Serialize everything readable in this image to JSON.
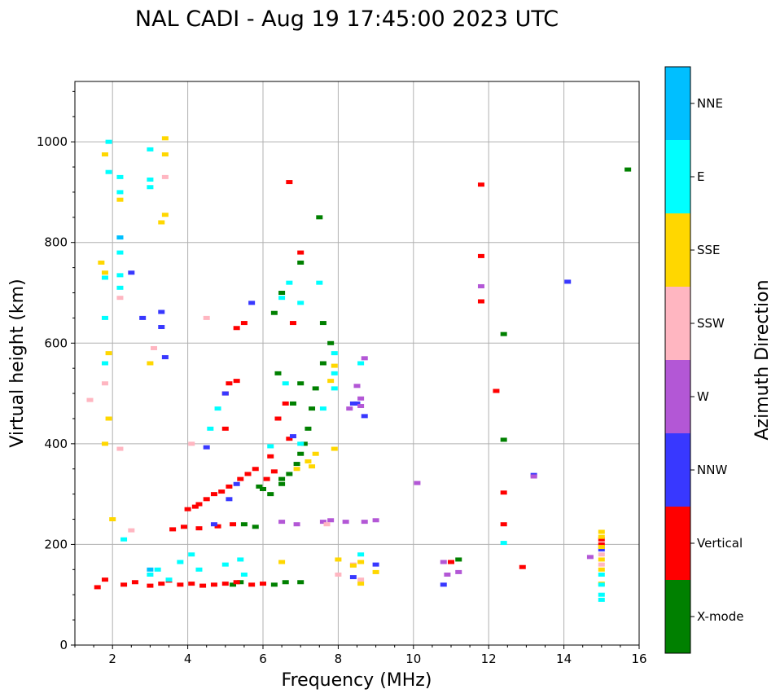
{
  "chart_data": {
    "type": "scatter",
    "title": "NAL CADI - Aug 19 17:45:00 2023 UTC",
    "xlabel": "Frequency (MHz)",
    "ylabel": "Virtual height (km)",
    "xlim": [
      1,
      16
    ],
    "ylim": [
      0,
      1120
    ],
    "xticks": [
      2,
      4,
      6,
      8,
      10,
      12,
      14,
      16
    ],
    "xtick_labels": [
      "2",
      "4",
      "6",
      "8",
      "10",
      "12",
      "14",
      "16"
    ],
    "yticks": [
      0,
      200,
      400,
      600,
      800,
      1000
    ],
    "ytick_labels": [
      "0",
      "200",
      "400",
      "600",
      "800",
      "1000"
    ],
    "grid": true,
    "colorbar": {
      "label": "Azimuth Direction",
      "categories": [
        {
          "name": "X-mode",
          "color": "#008000"
        },
        {
          "name": "Vertical",
          "color": "#ff0000"
        },
        {
          "name": "NNW",
          "color": "#3838ff"
        },
        {
          "name": "W",
          "color": "#b357d6"
        },
        {
          "name": "SSW",
          "color": "#ffb6c1"
        },
        {
          "name": "SSE",
          "color": "#ffd700"
        },
        {
          "name": "E",
          "color": "#00ffff"
        },
        {
          "name": "NNE",
          "color": "#00bfff"
        }
      ]
    },
    "series": [
      {
        "name": "X-mode",
        "points": [
          [
            6.5,
            320
          ],
          [
            6.7,
            340
          ],
          [
            6.9,
            360
          ],
          [
            7.0,
            380
          ],
          [
            7.1,
            400
          ],
          [
            7.2,
            430
          ],
          [
            7.3,
            470
          ],
          [
            7.4,
            510
          ],
          [
            7.6,
            560
          ],
          [
            7.8,
            600
          ],
          [
            6.4,
            540
          ],
          [
            6.8,
            480
          ],
          [
            7.0,
            520
          ],
          [
            6.2,
            300
          ],
          [
            6.5,
            330
          ],
          [
            6.0,
            310
          ],
          [
            5.9,
            315
          ],
          [
            5.5,
            240
          ],
          [
            5.8,
            235
          ],
          [
            6.3,
            120
          ],
          [
            6.6,
            125
          ],
          [
            7.0,
            125
          ],
          [
            5.2,
            120
          ],
          [
            5.4,
            125
          ],
          [
            12.4,
            618
          ],
          [
            12.4,
            408
          ],
          [
            7.5,
            850
          ],
          [
            7.0,
            760
          ],
          [
            6.5,
            700
          ],
          [
            6.3,
            660
          ],
          [
            15.7,
            945
          ],
          [
            7.6,
            640
          ],
          [
            11.2,
            170
          ]
        ]
      },
      {
        "name": "Vertical",
        "points": [
          [
            1.6,
            115
          ],
          [
            1.8,
            130
          ],
          [
            2.3,
            120
          ],
          [
            2.6,
            125
          ],
          [
            3.0,
            118
          ],
          [
            3.3,
            122
          ],
          [
            3.5,
            128
          ],
          [
            3.8,
            120
          ],
          [
            4.1,
            122
          ],
          [
            4.4,
            118
          ],
          [
            4.7,
            120
          ],
          [
            5.0,
            122
          ],
          [
            5.3,
            125
          ],
          [
            5.7,
            120
          ],
          [
            6.0,
            122
          ],
          [
            3.6,
            230
          ],
          [
            3.9,
            235
          ],
          [
            4.3,
            232
          ],
          [
            4.8,
            236
          ],
          [
            5.2,
            240
          ],
          [
            4.0,
            270
          ],
          [
            4.2,
            275
          ],
          [
            4.3,
            280
          ],
          [
            4.5,
            290
          ],
          [
            4.7,
            300
          ],
          [
            4.9,
            305
          ],
          [
            5.1,
            315
          ],
          [
            5.4,
            330
          ],
          [
            5.6,
            340
          ],
          [
            5.8,
            350
          ],
          [
            6.1,
            330
          ],
          [
            6.3,
            345
          ],
          [
            5.0,
            430
          ],
          [
            5.1,
            520
          ],
          [
            5.3,
            525
          ],
          [
            5.0,
            500
          ],
          [
            5.5,
            640
          ],
          [
            5.3,
            630
          ],
          [
            6.4,
            450
          ],
          [
            6.6,
            480
          ],
          [
            6.7,
            410
          ],
          [
            6.7,
            920
          ],
          [
            7.0,
            780
          ],
          [
            6.8,
            640
          ],
          [
            6.2,
            375
          ],
          [
            12.9,
            155
          ],
          [
            12.4,
            303
          ],
          [
            12.4,
            240
          ],
          [
            11.8,
            915
          ],
          [
            11.8,
            773
          ],
          [
            11.8,
            683
          ],
          [
            12.2,
            505
          ],
          [
            11.0,
            165
          ],
          [
            15.0,
            200
          ],
          [
            15.0,
            210
          ]
        ]
      },
      {
        "name": "NNW",
        "points": [
          [
            5.7,
            680
          ],
          [
            3.3,
            632
          ],
          [
            3.3,
            662
          ],
          [
            3.4,
            572
          ],
          [
            2.5,
            740
          ],
          [
            2.8,
            650
          ],
          [
            6.8,
            415
          ],
          [
            5.1,
            290
          ],
          [
            5.3,
            320
          ],
          [
            4.7,
            240
          ],
          [
            8.5,
            480
          ],
          [
            8.7,
            455
          ],
          [
            9.0,
            160
          ],
          [
            8.4,
            135
          ],
          [
            10.8,
            120
          ],
          [
            14.1,
            722
          ],
          [
            13.2,
            338
          ],
          [
            15.0,
            190
          ],
          [
            4.5,
            393
          ],
          [
            8.4,
            480
          ],
          [
            5.0,
            500
          ]
        ]
      },
      {
        "name": "W",
        "points": [
          [
            8.7,
            570
          ],
          [
            8.6,
            490
          ],
          [
            8.6,
            475
          ],
          [
            8.5,
            515
          ],
          [
            8.3,
            470
          ],
          [
            7.6,
            245
          ],
          [
            7.8,
            248
          ],
          [
            8.2,
            245
          ],
          [
            8.7,
            245
          ],
          [
            9.0,
            248
          ],
          [
            6.5,
            245
          ],
          [
            6.9,
            240
          ],
          [
            10.8,
            165
          ],
          [
            10.9,
            140
          ],
          [
            11.2,
            145
          ],
          [
            14.7,
            175
          ],
          [
            11.8,
            713
          ],
          [
            10.1,
            322
          ],
          [
            13.2,
            335
          ]
        ]
      },
      {
        "name": "SSW",
        "points": [
          [
            1.4,
            487
          ],
          [
            1.8,
            520
          ],
          [
            2.2,
            390
          ],
          [
            2.5,
            228
          ],
          [
            2.2,
            690
          ],
          [
            4.5,
            650
          ],
          [
            4.1,
            400
          ],
          [
            8.4,
            160
          ],
          [
            8.6,
            130
          ],
          [
            8.0,
            140
          ],
          [
            7.7,
            240
          ],
          [
            3.4,
            930
          ],
          [
            3.1,
            590
          ],
          [
            15.0,
            180
          ],
          [
            15.0,
            160
          ]
        ]
      },
      {
        "name": "SSE",
        "points": [
          [
            1.8,
            975
          ],
          [
            2.2,
            885
          ],
          [
            3.4,
            1007
          ],
          [
            3.4,
            975
          ],
          [
            3.4,
            855
          ],
          [
            1.7,
            760
          ],
          [
            1.8,
            740
          ],
          [
            1.9,
            580
          ],
          [
            1.9,
            450
          ],
          [
            1.8,
            400
          ],
          [
            2.0,
            250
          ],
          [
            3.3,
            840
          ],
          [
            8.6,
            165
          ],
          [
            8.4,
            158
          ],
          [
            8.6,
            122
          ],
          [
            9.0,
            145
          ],
          [
            6.5,
            165
          ],
          [
            7.9,
            555
          ],
          [
            7.8,
            525
          ],
          [
            7.9,
            390
          ],
          [
            7.4,
            380
          ],
          [
            7.2,
            365
          ],
          [
            7.3,
            355
          ],
          [
            6.9,
            350
          ],
          [
            15.0,
            225
          ],
          [
            15.0,
            215
          ],
          [
            15.0,
            195
          ],
          [
            15.0,
            170
          ],
          [
            15.0,
            150
          ],
          [
            15.0,
            122
          ],
          [
            8.0,
            170
          ],
          [
            3.0,
            560
          ]
        ]
      },
      {
        "name": "E",
        "points": [
          [
            1.9,
            1000
          ],
          [
            1.9,
            940
          ],
          [
            2.2,
            930
          ],
          [
            2.2,
            900
          ],
          [
            3.0,
            985
          ],
          [
            3.0,
            925
          ],
          [
            3.0,
            910
          ],
          [
            2.2,
            810
          ],
          [
            2.2,
            780
          ],
          [
            2.2,
            735
          ],
          [
            1.8,
            730
          ],
          [
            1.8,
            650
          ],
          [
            1.8,
            560
          ],
          [
            2.2,
            710
          ],
          [
            2.3,
            210
          ],
          [
            3.0,
            140
          ],
          [
            3.2,
            150
          ],
          [
            3.5,
            130
          ],
          [
            3.8,
            165
          ],
          [
            4.1,
            180
          ],
          [
            4.3,
            150
          ],
          [
            5.0,
            160
          ],
          [
            5.4,
            170
          ],
          [
            5.5,
            140
          ],
          [
            6.7,
            720
          ],
          [
            6.5,
            690
          ],
          [
            6.6,
            520
          ],
          [
            6.2,
            395
          ],
          [
            7.0,
            400
          ],
          [
            7.9,
            580
          ],
          [
            7.9,
            540
          ],
          [
            7.9,
            510
          ],
          [
            7.6,
            470
          ],
          [
            8.6,
            560
          ],
          [
            8.6,
            180
          ],
          [
            12.4,
            203
          ],
          [
            15.0,
            140
          ],
          [
            15.0,
            120
          ],
          [
            15.0,
            100
          ],
          [
            15.0,
            90
          ],
          [
            4.8,
            470
          ],
          [
            4.6,
            430
          ],
          [
            7.0,
            680
          ],
          [
            7.5,
            720
          ]
        ]
      },
      {
        "name": "NNE",
        "points": [
          [
            2.2,
            810
          ],
          [
            3.0,
            150
          ]
        ]
      }
    ]
  }
}
